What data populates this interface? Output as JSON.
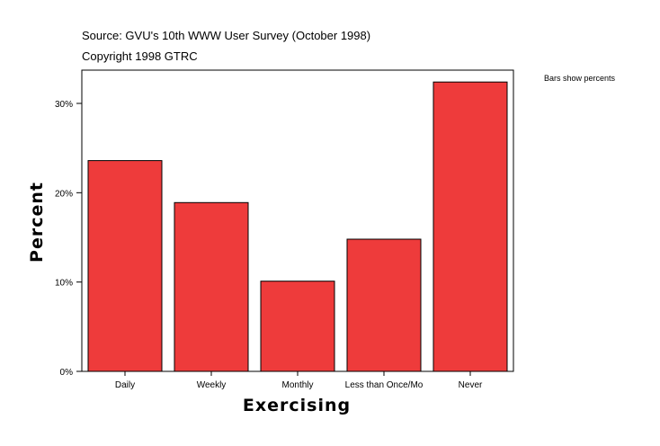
{
  "header": {
    "source": "Source: GVU's 10th WWW User Survey (October 1998)",
    "copyright": "Copyright 1998 GTRC"
  },
  "note": "Bars show percents",
  "colors": {
    "bar": "#ee3b3b",
    "bar_stroke": "#000000"
  },
  "chart_data": {
    "type": "bar",
    "categories": [
      "Daily",
      "Weekly",
      "Monthly",
      "Less than Once/Mo",
      "Never"
    ],
    "values": [
      23.6,
      18.9,
      10.1,
      14.8,
      32.4
    ],
    "xlabel": "Exercising",
    "ylabel": "Percent",
    "ylim": [
      0,
      30
    ],
    "yticks": [
      0,
      10,
      20,
      30
    ],
    "ytick_labels": [
      "0%",
      "10%",
      "20%",
      "30%"
    ],
    "grid": false,
    "legend": "none"
  }
}
